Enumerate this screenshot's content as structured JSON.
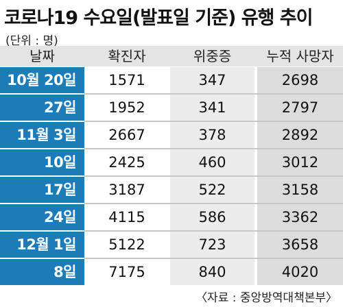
{
  "title": "코로나19 수요일(발표일 기준) 유행 추이",
  "unit": "(단위 : 명)",
  "source": "〈자료 : 중앙방역대책본부〉",
  "colors": {
    "date_column": "#1d7cb8",
    "header_bg": "#e4e4e4",
    "col_critical_bg": "#ececec",
    "col_deaths_bg": "#dcdcdc"
  },
  "chart_data": {
    "type": "table",
    "columns": [
      "날짜",
      "확진자",
      "위중증",
      "누적 사망자"
    ],
    "rows": [
      {
        "date": "10월 20일",
        "cases": "1571",
        "critical": "347",
        "deaths": "2698"
      },
      {
        "date": "27일",
        "cases": "1952",
        "critical": "341",
        "deaths": "2797"
      },
      {
        "date": "11월 3일",
        "cases": "2667",
        "critical": "378",
        "deaths": "2892"
      },
      {
        "date": "10일",
        "cases": "2425",
        "critical": "460",
        "deaths": "3012"
      },
      {
        "date": "17일",
        "cases": "3187",
        "critical": "522",
        "deaths": "3158"
      },
      {
        "date": "24일",
        "cases": "4115",
        "critical": "586",
        "deaths": "3362"
      },
      {
        "date": "12월 1일",
        "cases": "5122",
        "critical": "723",
        "deaths": "3658"
      },
      {
        "date": "8일",
        "cases": "7175",
        "critical": "840",
        "deaths": "4020"
      }
    ]
  }
}
